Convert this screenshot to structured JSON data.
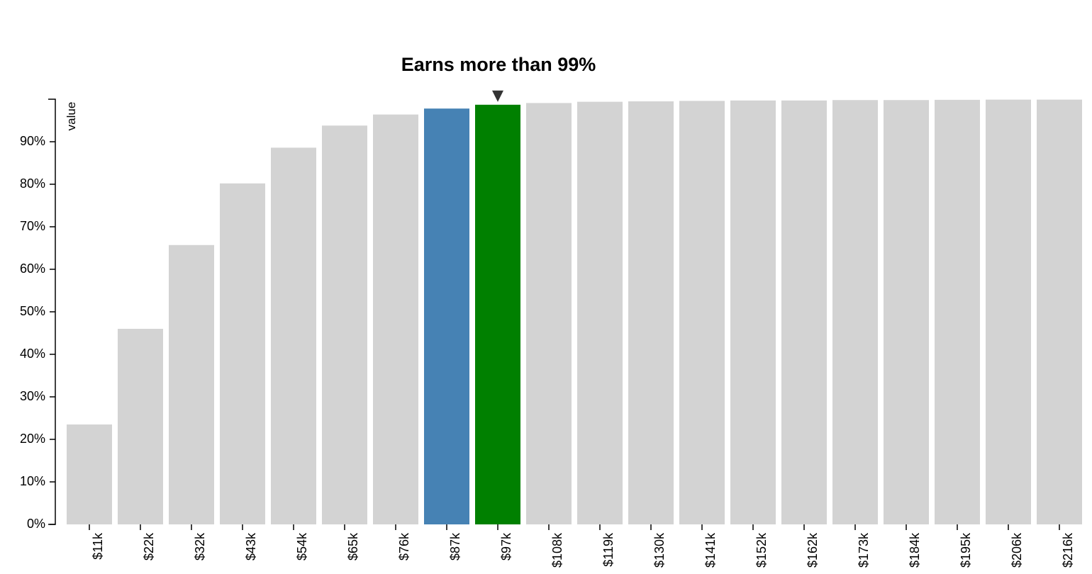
{
  "chart_data": {
    "type": "bar",
    "title": "Earns more than 99%",
    "xlabel": "",
    "ylabel": "value",
    "categories": [
      "$11k",
      "$22k",
      "$32k",
      "$43k",
      "$54k",
      "$65k",
      "$76k",
      "$87k",
      "$97k",
      "$108k",
      "$119k",
      "$130k",
      "$141k",
      "$152k",
      "$162k",
      "$173k",
      "$184k",
      "$195k",
      "$206k",
      "$216k"
    ],
    "values": [
      23.5,
      46.0,
      65.7,
      80.2,
      88.6,
      93.8,
      96.4,
      97.8,
      98.7,
      99.1,
      99.4,
      99.5,
      99.6,
      99.7,
      99.7,
      99.8,
      99.8,
      99.85,
      99.9,
      99.9
    ],
    "ylim": [
      0,
      100
    ],
    "yticks": [
      "0%",
      "10%",
      "20%",
      "30%",
      "40%",
      "50%",
      "60%",
      "70%",
      "80%",
      "90%"
    ],
    "highlight": {
      "previous_index": 7,
      "current_index": 8,
      "marker": "down-triangle"
    },
    "colors": {
      "default_bar": "#d3d3d3",
      "previous_bar": "#4682b4",
      "current_bar": "#008000",
      "marker": "#333333",
      "axis": "#000000"
    },
    "grid": false,
    "legend": "none"
  }
}
